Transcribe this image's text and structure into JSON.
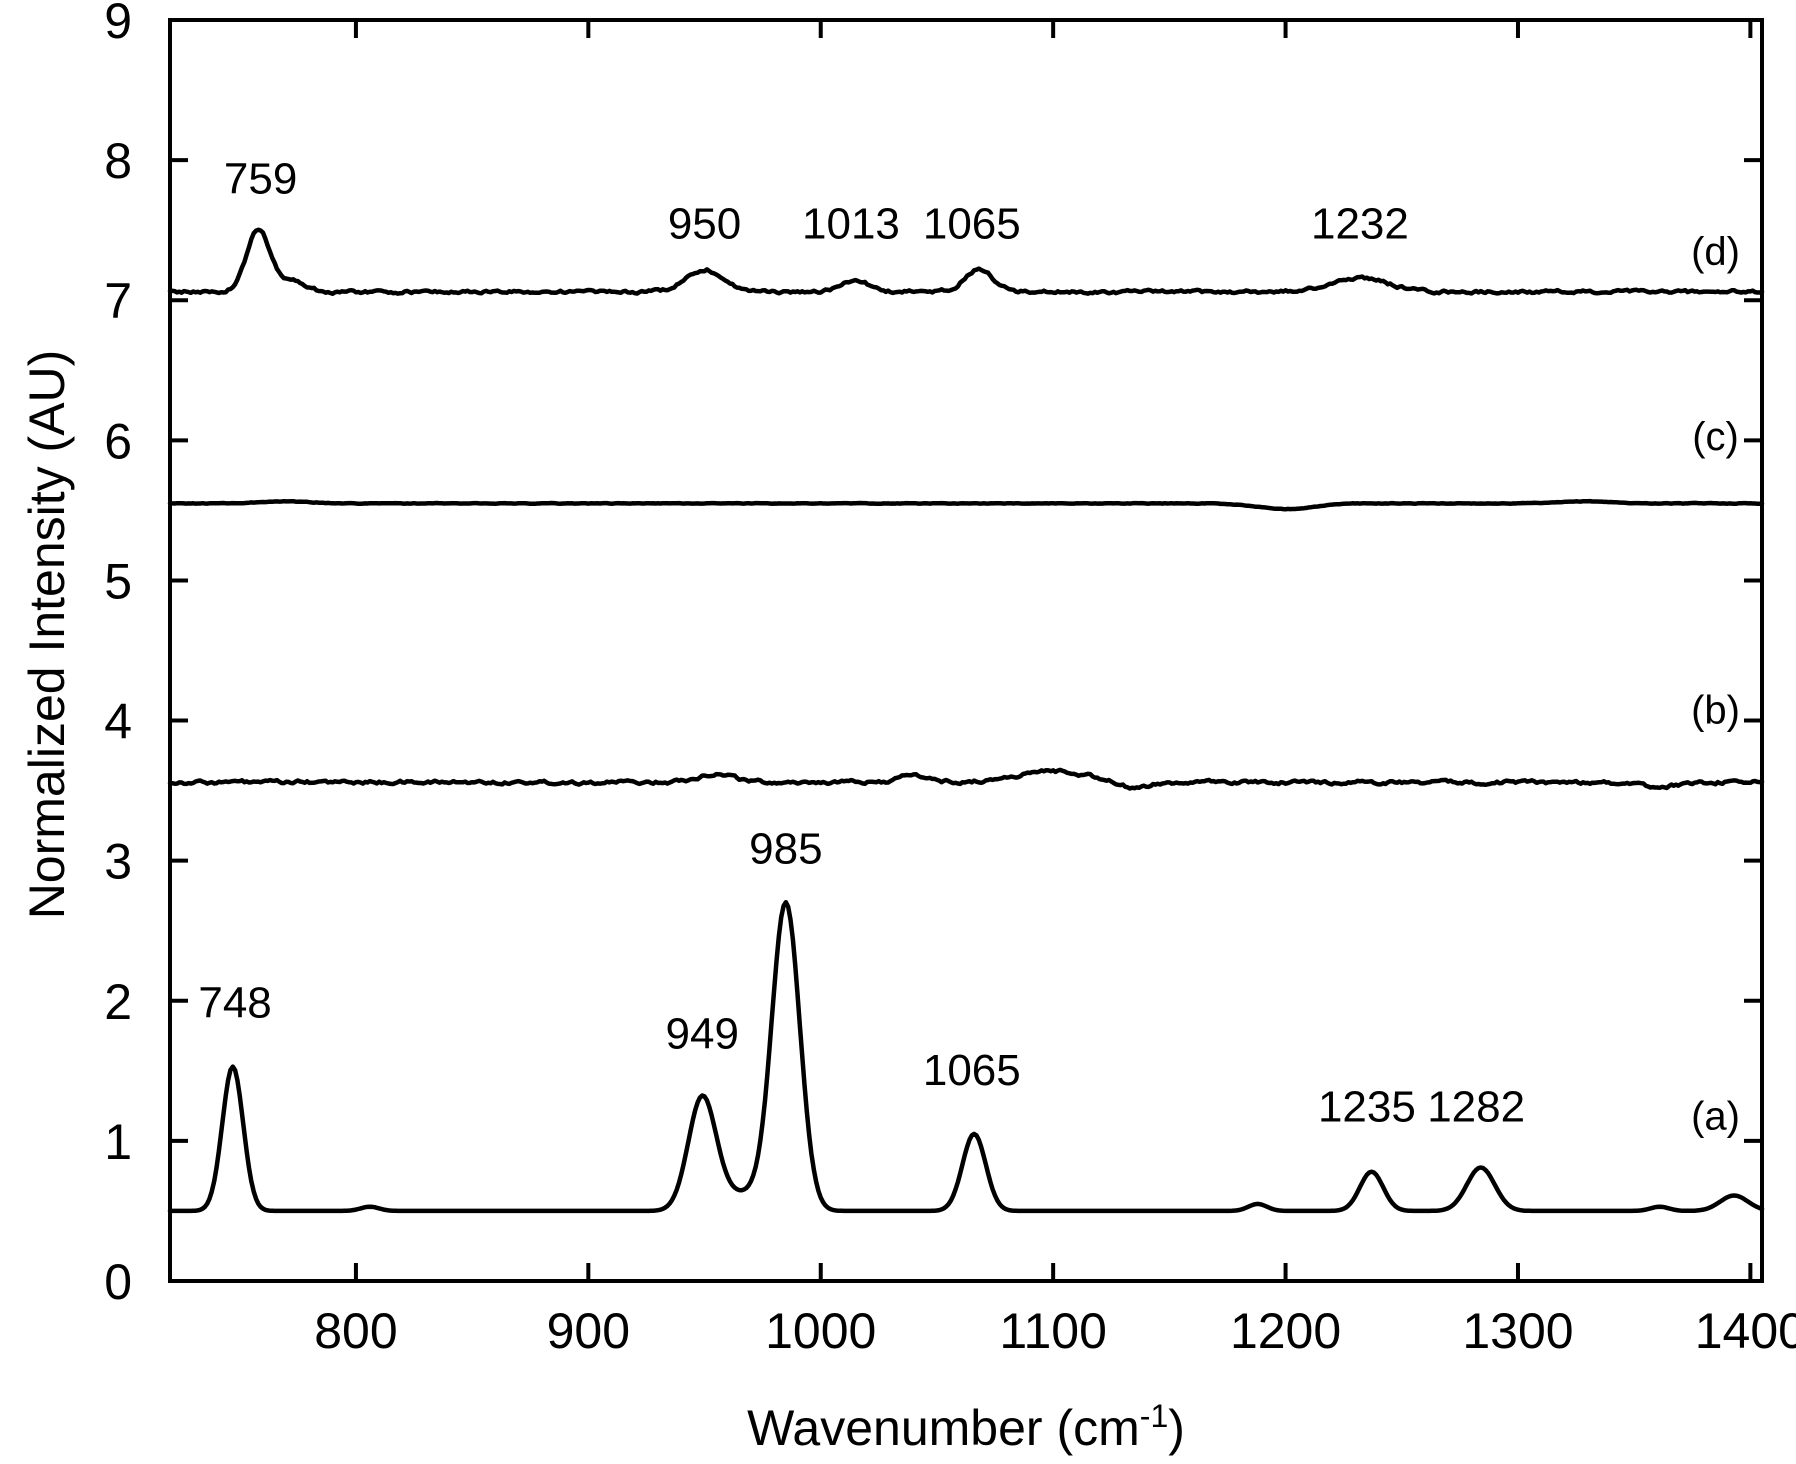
{
  "chart_data": {
    "type": "line",
    "xlabel": "Wavenumber (cm",
    "xlabel_superscript": "-1",
    "xlabel_suffix": ")",
    "ylabel": "Normalized Intensity (AU)",
    "xlim": [
      720,
      1405
    ],
    "ylim": [
      0,
      9
    ],
    "x_ticks": [
      800,
      900,
      1000,
      1100,
      1200,
      1300,
      1400
    ],
    "y_ticks": [
      0,
      1,
      2,
      3,
      4,
      5,
      6,
      7,
      8,
      9
    ],
    "grid": false,
    "legend": "none",
    "series": [
      {
        "name": "(a)",
        "label_pos": {
          "x": 1385,
          "y": 1.08
        },
        "baseline": 0.5,
        "noise": 0.0,
        "peaks": [
          [
            747,
            1.03,
            4.5
          ],
          [
            806,
            0.03,
            4
          ],
          [
            949,
            0.8,
            6
          ],
          [
            967,
            0.12,
            10
          ],
          [
            985,
            2.18,
            6
          ],
          [
            1066,
            0.55,
            5
          ],
          [
            1188,
            0.05,
            4
          ],
          [
            1237,
            0.28,
            5
          ],
          [
            1284,
            0.31,
            6
          ],
          [
            1361,
            0.03,
            4
          ],
          [
            1393,
            0.11,
            6
          ]
        ],
        "annotations": [
          {
            "text": "748",
            "x": 748,
            "y": 1.88
          },
          {
            "text": "949",
            "x": 949,
            "y": 1.66
          },
          {
            "text": "985",
            "x": 985,
            "y": 2.98
          },
          {
            "text": "1065",
            "x": 1065,
            "y": 1.4
          },
          {
            "text": "1235",
            "x": 1235,
            "y": 1.14
          },
          {
            "text": "1282",
            "x": 1282,
            "y": 1.14
          }
        ]
      },
      {
        "name": "(b)",
        "label_pos": {
          "x": 1385,
          "y": 3.98
        },
        "baseline": 3.56,
        "noise": 0.022,
        "peaks": [
          [
            955,
            0.06,
            8
          ],
          [
            1040,
            0.05,
            6
          ],
          [
            1100,
            0.08,
            15
          ],
          [
            1135,
            -0.05,
            6
          ],
          [
            1360,
            -0.03,
            10
          ]
        ],
        "annotations": []
      },
      {
        "name": "(c)",
        "label_pos": {
          "x": 1385,
          "y": 5.93
        },
        "baseline": 5.55,
        "noise": 0.004,
        "peaks": [
          [
            770,
            0.015,
            10
          ],
          [
            1200,
            -0.04,
            12
          ],
          [
            1330,
            0.015,
            10
          ]
        ],
        "annotations": []
      },
      {
        "name": "(d)",
        "label_pos": {
          "x": 1385,
          "y": 7.25
        },
        "baseline": 7.06,
        "noise": 0.02,
        "peaks": [
          [
            758,
            0.44,
            5
          ],
          [
            772,
            0.08,
            6
          ],
          [
            950,
            0.16,
            8
          ],
          [
            1015,
            0.08,
            6
          ],
          [
            1068,
            0.16,
            6
          ],
          [
            1232,
            0.1,
            12
          ]
        ],
        "annotations": [
          {
            "text": "759",
            "x": 759,
            "y": 7.76
          },
          {
            "text": "950",
            "x": 950,
            "y": 7.44
          },
          {
            "text": "1013",
            "x": 1013,
            "y": 7.44
          },
          {
            "text": "1065",
            "x": 1065,
            "y": 7.44
          },
          {
            "text": "1232",
            "x": 1232,
            "y": 7.44
          }
        ]
      }
    ]
  }
}
